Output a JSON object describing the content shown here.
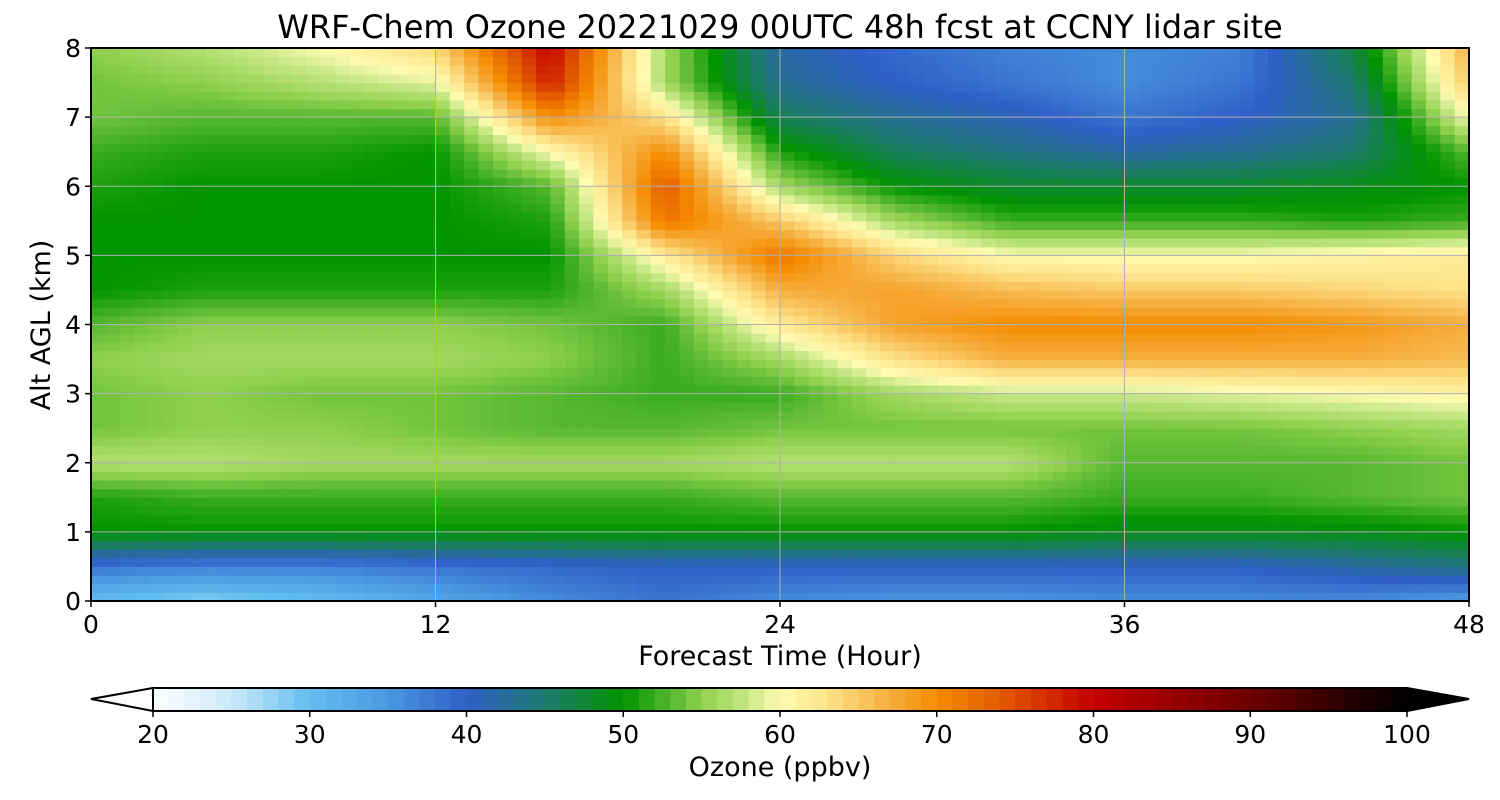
{
  "chart_data": {
    "type": "heatmap",
    "title": "WRF-Chem Ozone  20221029 00UTC 48h fcst at CCNY lidar site",
    "xlabel": "Forecast Time (Hour)",
    "ylabel": "Alt AGL (km)",
    "xlim": [
      0,
      48
    ],
    "ylim": [
      0,
      8
    ],
    "xticks": [
      0,
      12,
      24,
      36,
      48
    ],
    "yticks": [
      0,
      1,
      2,
      3,
      4,
      5,
      6,
      7,
      8
    ],
    "grid": true,
    "x": [
      0,
      4,
      8,
      12,
      16,
      20,
      24,
      28,
      32,
      36,
      40,
      44,
      48
    ],
    "y": [
      0,
      0.5,
      1,
      1.5,
      2,
      2.5,
      3,
      3.5,
      4,
      4.5,
      5,
      5.5,
      6,
      6.5,
      7,
      7.5,
      8
    ],
    "z": [
      [
        30,
        28,
        30,
        33,
        36,
        38,
        36,
        35,
        35,
        36,
        36,
        36,
        34
      ],
      [
        38,
        37,
        37,
        38,
        39,
        40,
        40,
        40,
        40,
        40,
        40,
        42,
        44
      ],
      [
        50,
        50,
        50,
        50,
        50,
        50,
        50,
        50,
        50,
        49,
        49,
        49,
        50
      ],
      [
        51,
        52,
        52,
        52,
        52,
        52,
        53,
        53,
        53,
        52,
        52,
        53,
        54
      ],
      [
        57,
        57,
        56,
        56,
        56,
        56,
        57,
        57,
        57,
        53,
        53,
        53,
        54
      ],
      [
        54,
        55,
        55,
        54,
        53,
        53,
        54,
        54,
        54,
        54,
        54,
        55,
        56
      ],
      [
        54,
        55,
        54,
        54,
        53,
        52,
        52,
        56,
        58,
        58,
        59,
        60,
        61
      ],
      [
        55,
        56,
        56,
        56,
        55,
        52,
        56,
        63,
        67,
        67,
        67,
        67,
        66
      ],
      [
        53,
        55,
        55,
        55,
        54,
        52,
        62,
        68,
        70,
        70,
        70,
        69,
        67
      ],
      [
        50,
        51,
        51,
        51,
        51,
        56,
        67,
        68,
        66,
        65,
        65,
        64,
        63
      ],
      [
        50,
        50,
        50,
        50,
        50,
        62,
        72,
        64,
        60,
        60,
        60,
        61,
        62
      ],
      [
        50,
        50,
        50,
        50,
        51,
        72,
        65,
        56,
        52,
        52,
        52,
        51,
        52
      ],
      [
        51,
        50,
        50,
        50,
        53,
        74,
        56,
        50,
        48,
        48,
        48,
        49,
        50
      ],
      [
        52,
        51,
        51,
        50,
        60,
        70,
        51,
        46,
        44,
        42,
        43,
        45,
        53
      ],
      [
        54,
        53,
        53,
        53,
        70,
        63,
        46,
        43,
        41,
        38,
        40,
        43,
        60
      ],
      [
        54,
        55,
        57,
        59,
        78,
        56,
        43,
        40,
        38,
        36,
        38,
        45,
        65
      ],
      [
        55,
        57,
        60,
        64,
        80,
        56,
        42,
        39,
        37,
        36,
        37,
        47,
        67
      ]
    ],
    "colorbar": {
      "label": "Ozone  (ppbv)",
      "min": 20,
      "max": 100,
      "ticks": [
        20,
        30,
        40,
        50,
        60,
        70,
        80,
        90,
        100
      ],
      "extend": "both",
      "orientation": "horizontal"
    },
    "colormap": [
      [
        20,
        "#ffffff"
      ],
      [
        25,
        "#cbe9f8"
      ],
      [
        30,
        "#63bdf0"
      ],
      [
        35,
        "#4a98e0"
      ],
      [
        40,
        "#2f5fc8"
      ],
      [
        45,
        "#1e7a6e"
      ],
      [
        50,
        "#009400"
      ],
      [
        55,
        "#8fd04c"
      ],
      [
        58,
        "#c8e888"
      ],
      [
        60,
        "#fffbb0"
      ],
      [
        63,
        "#fde38a"
      ],
      [
        67,
        "#f6ae3e"
      ],
      [
        70,
        "#f58c00"
      ],
      [
        74,
        "#e25b00"
      ],
      [
        80,
        "#c40000"
      ],
      [
        90,
        "#6d0000"
      ],
      [
        100,
        "#000000"
      ]
    ]
  }
}
